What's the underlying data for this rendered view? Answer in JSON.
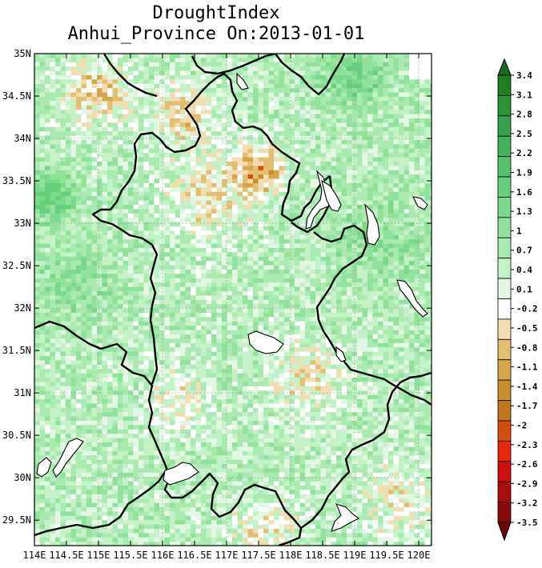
{
  "title": {
    "line1": "DroughtIndex",
    "line2": "Anhui_Province On:2013-01-01"
  },
  "map": {
    "lon_ticks": [
      "114E",
      "114.5E",
      "115E",
      "115.5E",
      "116E",
      "116.5E",
      "117E",
      "117.5E",
      "118E",
      "118.5E",
      "119E",
      "119.5E",
      "120E"
    ],
    "lat_ticks": [
      "35N",
      "34.5N",
      "34N",
      "33.5N",
      "33N",
      "32.5N",
      "32N",
      "31.5N",
      "31N",
      "30.5N",
      "30N",
      "29.5N"
    ],
    "lon_range": [
      114.0,
      120.2
    ],
    "lat_range": [
      29.2,
      35.0
    ],
    "grid": "dotted"
  },
  "colorbar": {
    "levels": [
      "3.4",
      "3.1",
      "2.8",
      "2.5",
      "2.2",
      "1.9",
      "1.6",
      "1.3",
      "1",
      "0.7",
      "0.4",
      "0.1",
      "-0.2",
      "-0.5",
      "-0.8",
      "-1.1",
      "-1.4",
      "-1.7",
      "-2",
      "-2.3",
      "-2.6",
      "-2.9",
      "-3.2",
      "-3.5"
    ],
    "colors": [
      "#1a6b1a",
      "#1f7f1f",
      "#2a9134",
      "#37a24a",
      "#45b25a",
      "#55c26b",
      "#67cf7a",
      "#7bd98b",
      "#91e29b",
      "#a8eab0",
      "#c3f2c8",
      "#e2f8e4",
      "#ffffff",
      "#f0deb0",
      "#e3bf73",
      "#d6a64a",
      "#c98f2e",
      "#c0781a",
      "#d44c10",
      "#e8280c",
      "#cc1010",
      "#aa0b0b",
      "#8a0808",
      "#6e0505"
    ]
  },
  "legend_colors": {
    "wet_strong": "#1a6b1a",
    "wet_mild": "#91e29b",
    "neutral": "#ffffff",
    "dry_mild": "#e3bf73",
    "dry_strong": "#d44c10"
  }
}
